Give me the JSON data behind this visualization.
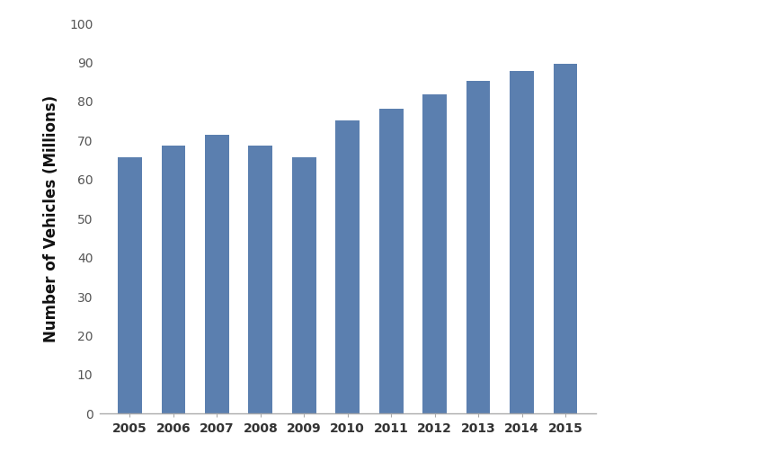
{
  "years": [
    2005,
    2006,
    2007,
    2008,
    2009,
    2010,
    2011,
    2012,
    2013,
    2014,
    2015
  ],
  "values": [
    65.7,
    68.6,
    71.4,
    68.6,
    65.7,
    75.2,
    78.1,
    81.9,
    85.4,
    87.9,
    89.7
  ],
  "bar_color": "#5b7faf",
  "ylabel": "Number of Vehicles (Millions)",
  "ylim": [
    0,
    100
  ],
  "yticks": [
    0,
    10,
    20,
    30,
    40,
    50,
    60,
    70,
    80,
    90,
    100
  ],
  "ylabel_fontsize": 12,
  "tick_fontsize": 10,
  "bar_width": 0.55,
  "background_color": "#ffffff",
  "edge_color": "none",
  "spine_color": "#aaaaaa"
}
